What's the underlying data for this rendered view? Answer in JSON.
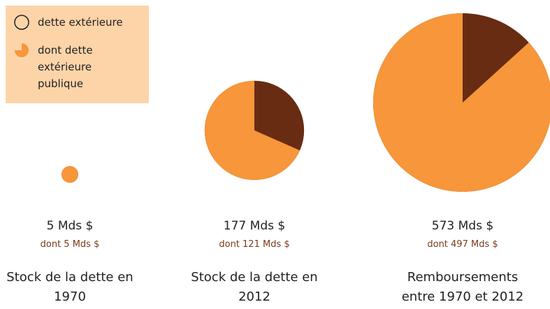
{
  "chart_data": {
    "type": "pie",
    "categories": [
      "Stock de la dette en 1970",
      "Stock de la dette en 2012",
      "Remboursements entre 1970 et 2012"
    ],
    "series": [
      {
        "name": "dette extérieure",
        "color": "#682c12",
        "values": [
          5,
          177,
          573
        ],
        "value_labels": [
          "5 Mds $",
          "177 Mds $",
          "573 Mds $"
        ]
      },
      {
        "name": "dont dette extérieure publique",
        "color": "#f7963a",
        "values": [
          5,
          121,
          497
        ],
        "value_labels": [
          "dont 5 Mds $",
          "dont 121 Mds $",
          "dont 497 Mds $"
        ]
      }
    ],
    "legend": "top-left"
  }
}
